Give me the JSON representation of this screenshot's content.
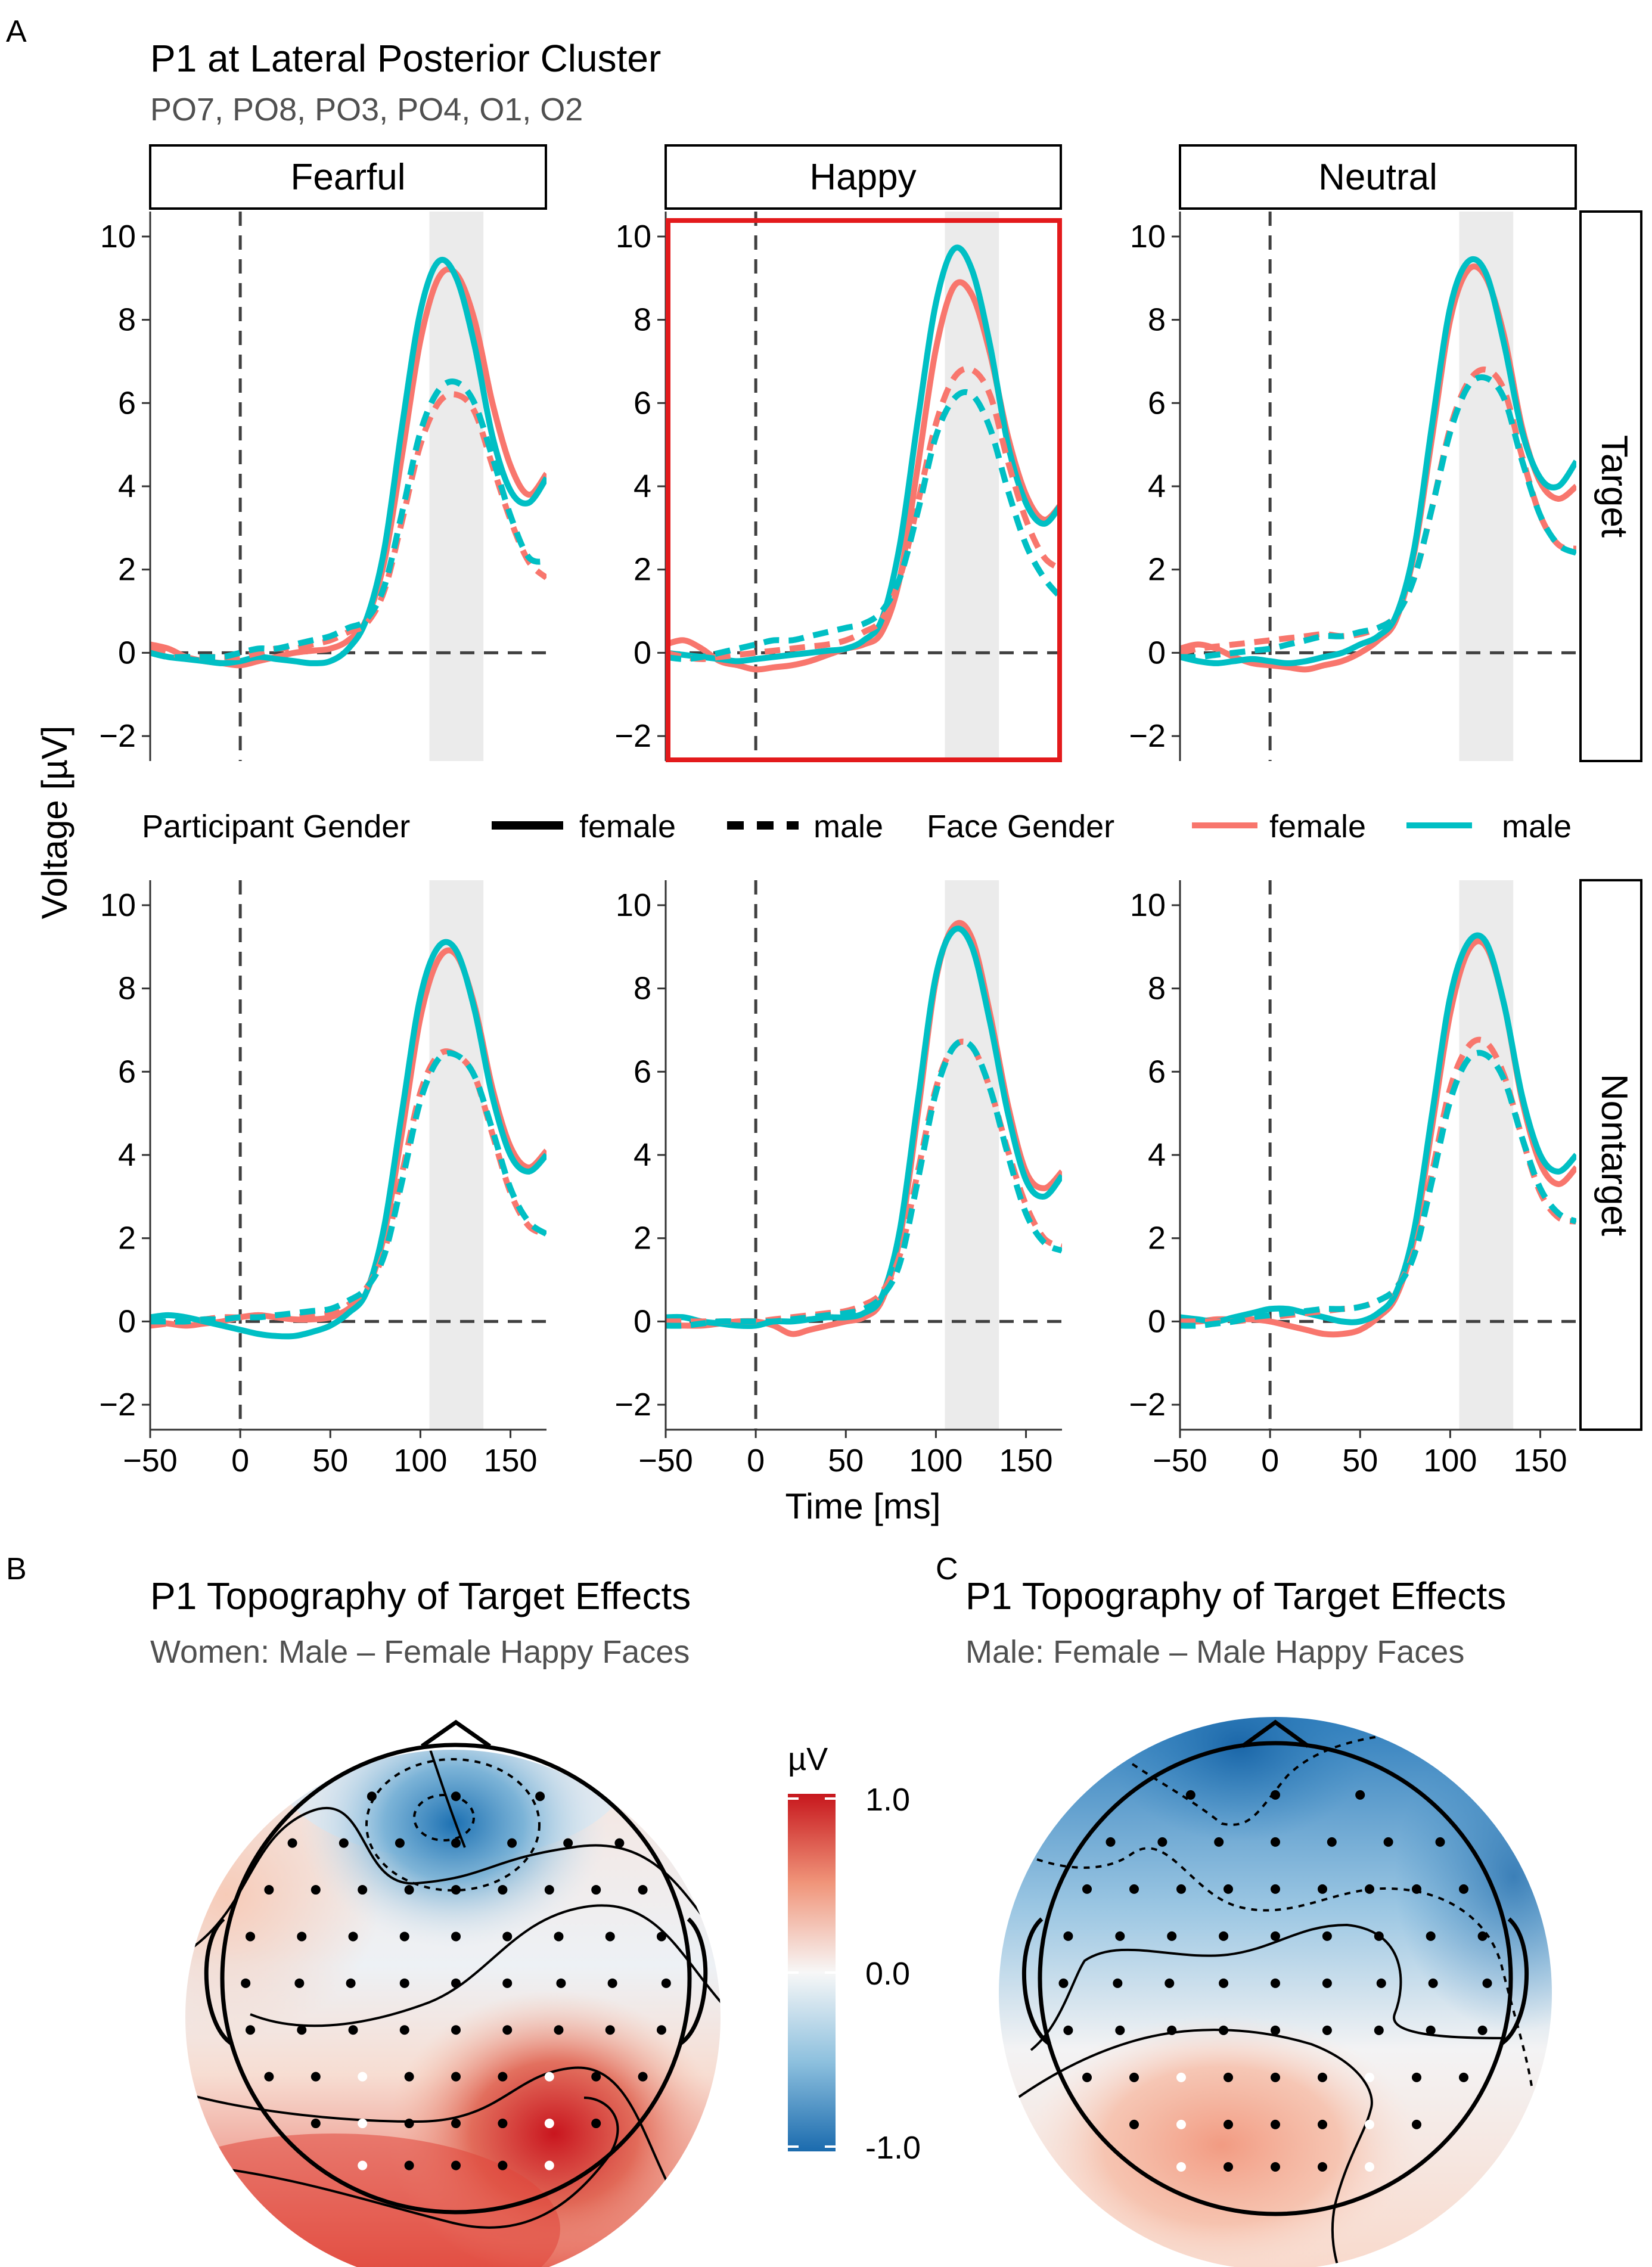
{
  "panel_labels": {
    "a": "A",
    "b": "B",
    "c": "C"
  },
  "panel_a": {
    "title": "P1 at Lateral Posterior Cluster",
    "subtitle": "PO7, PO8, PO3, PO4, O1, O2",
    "facet_columns": [
      "Fearful",
      "Happy",
      "Neutral"
    ],
    "facet_rows": [
      "Target",
      "Nontarget"
    ],
    "xlabel": "Time [ms]",
    "ylabel": "Voltage [µV]",
    "highlighted_panel": "Happy / Target"
  },
  "legend": {
    "participant_title": "Participant Gender",
    "participant_items": [
      "female",
      "male"
    ],
    "face_title": "Face Gender",
    "face_items": [
      "female",
      "male"
    ]
  },
  "colors": {
    "female": "#F8766D",
    "male": "#00BFC4",
    "highlight": "#E31A1C",
    "shade": "#EBEBEB"
  },
  "chart_data": [
    {
      "type": "line",
      "title": "P1 at Lateral Posterior Cluster",
      "xlabel": "Time [ms]",
      "ylabel": "Voltage [µV]",
      "xlim": [
        -50,
        170
      ],
      "ylim": [
        -2.6,
        10.6
      ],
      "x_ticks": [
        -50,
        0,
        50,
        100,
        150
      ],
      "x_tick_labels": [
        "−50",
        "0",
        "50",
        "100",
        "150"
      ],
      "y_ticks": [
        -2,
        0,
        2,
        4,
        6,
        8,
        10
      ],
      "y_tick_labels": [
        "−2",
        "0",
        "2",
        "4",
        "6",
        "8",
        "10"
      ],
      "shaded_window_ms": [
        105,
        135
      ],
      "reference_lines": {
        "x": 0,
        "y": 0
      },
      "x": [
        -50,
        -40,
        -30,
        -20,
        -10,
        0,
        10,
        20,
        30,
        40,
        50,
        60,
        70,
        80,
        90,
        100,
        110,
        120,
        130,
        140,
        150,
        160,
        170
      ],
      "panels": [
        {
          "facet_column": "Fearful",
          "facet_row": "Target",
          "series": [
            {
              "participant_gender": "female",
              "face_gender": "female",
              "values": [
                0.2,
                0.1,
                -0.1,
                -0.2,
                -0.25,
                -0.3,
                -0.2,
                -0.1,
                0,
                0.05,
                0.1,
                0.3,
                0.8,
                2.2,
                4.8,
                7.5,
                9.0,
                9.1,
                8.0,
                6.0,
                4.5,
                3.8,
                4.3
              ]
            },
            {
              "participant_gender": "female",
              "face_gender": "male",
              "values": [
                0,
                -0.1,
                -0.15,
                -0.2,
                -0.25,
                -0.2,
                -0.1,
                -0.15,
                -0.2,
                -0.25,
                -0.2,
                0.1,
                0.8,
                2.5,
                5.5,
                8.2,
                9.4,
                9.0,
                7.4,
                5.2,
                3.9,
                3.6,
                4.2
              ]
            },
            {
              "participant_gender": "male",
              "face_gender": "female",
              "values": [
                0.1,
                0,
                -0.1,
                -0.1,
                -0.1,
                -0.1,
                0,
                0.1,
                0.1,
                0.2,
                0.3,
                0.5,
                0.7,
                1.5,
                3.2,
                5.0,
                6.0,
                6.2,
                5.8,
                4.5,
                3.2,
                2.2,
                1.8
              ]
            },
            {
              "participant_gender": "male",
              "face_gender": "male",
              "values": [
                0,
                -0.1,
                -0.1,
                -0.1,
                -0.1,
                0,
                0.1,
                0.1,
                0.2,
                0.3,
                0.4,
                0.6,
                0.8,
                1.6,
                3.4,
                5.3,
                6.3,
                6.5,
                6.0,
                4.7,
                3.3,
                2.3,
                2.2
              ]
            }
          ]
        },
        {
          "facet_column": "Happy",
          "facet_row": "Target",
          "series": [
            {
              "participant_gender": "female",
              "face_gender": "female",
              "values": [
                0.2,
                0.3,
                0.1,
                -0.2,
                -0.3,
                -0.4,
                -0.35,
                -0.3,
                -0.2,
                -0.05,
                0.1,
                0.2,
                0.5,
                1.8,
                4.5,
                7.3,
                8.8,
                8.6,
                7.2,
                5.2,
                3.8,
                3.2,
                3.6
              ]
            },
            {
              "participant_gender": "female",
              "face_gender": "male",
              "values": [
                0,
                -0.05,
                -0.1,
                -0.15,
                -0.2,
                -0.15,
                -0.1,
                -0.05,
                0,
                0.05,
                0.1,
                0.3,
                0.8,
                2.6,
                5.6,
                8.4,
                9.7,
                9.2,
                7.4,
                5.0,
                3.6,
                3.1,
                3.6
              ]
            },
            {
              "participant_gender": "male",
              "face_gender": "female",
              "values": [
                0,
                -0.1,
                -0.15,
                -0.1,
                -0.05,
                0,
                0.05,
                0.1,
                0.15,
                0.2,
                0.3,
                0.5,
                0.8,
                1.8,
                3.6,
                5.5,
                6.6,
                6.8,
                6.2,
                4.6,
                3.2,
                2.3,
                2.0
              ]
            },
            {
              "participant_gender": "male",
              "face_gender": "male",
              "values": [
                -0.1,
                -0.15,
                -0.1,
                0,
                0.1,
                0.2,
                0.3,
                0.3,
                0.4,
                0.5,
                0.6,
                0.7,
                1.0,
                1.8,
                3.4,
                5.2,
                6.1,
                6.2,
                5.4,
                3.9,
                2.6,
                1.8,
                1.3
              ]
            }
          ]
        },
        {
          "facet_column": "Neutral",
          "facet_row": "Target",
          "series": [
            {
              "participant_gender": "female",
              "face_gender": "female",
              "values": [
                0.1,
                0.2,
                0.1,
                -0.1,
                -0.25,
                -0.3,
                -0.35,
                -0.4,
                -0.3,
                -0.2,
                0,
                0.3,
                0.8,
                2.4,
                5.2,
                8.0,
                9.2,
                9.0,
                7.6,
                5.4,
                4.1,
                3.7,
                4.0
              ]
            },
            {
              "participant_gender": "female",
              "face_gender": "male",
              "values": [
                -0.1,
                -0.2,
                -0.25,
                -0.2,
                -0.15,
                -0.2,
                -0.25,
                -0.2,
                -0.1,
                0,
                0.2,
                0.4,
                0.9,
                2.5,
                5.5,
                8.3,
                9.4,
                9.1,
                7.4,
                5.3,
                4.2,
                4.0,
                4.6
              ]
            },
            {
              "participant_gender": "male",
              "face_gender": "female",
              "values": [
                0,
                0.1,
                0.15,
                0.2,
                0.25,
                0.3,
                0.35,
                0.4,
                0.45,
                0.4,
                0.45,
                0.6,
                0.9,
                1.8,
                3.5,
                5.4,
                6.5,
                6.8,
                6.3,
                4.7,
                3.3,
                2.6,
                2.5
              ]
            },
            {
              "participant_gender": "male",
              "face_gender": "male",
              "values": [
                -0.1,
                -0.1,
                -0.05,
                0,
                0.05,
                0.1,
                0.2,
                0.3,
                0.4,
                0.4,
                0.5,
                0.6,
                0.9,
                1.8,
                3.5,
                5.3,
                6.4,
                6.6,
                6.1,
                4.6,
                3.3,
                2.6,
                2.4
              ]
            }
          ]
        },
        {
          "facet_column": "Fearful",
          "facet_row": "Nontarget",
          "series": [
            {
              "participant_gender": "female",
              "face_gender": "female",
              "values": [
                0,
                -0.05,
                -0.1,
                -0.05,
                0,
                0.1,
                0.15,
                0.1,
                0.05,
                0.05,
                0.1,
                0.3,
                0.7,
                2.1,
                4.6,
                7.3,
                8.7,
                8.8,
                7.6,
                5.6,
                4.2,
                3.7,
                4.1
              ]
            },
            {
              "participant_gender": "female",
              "face_gender": "male",
              "values": [
                0.1,
                0.15,
                0.1,
                0,
                -0.1,
                -0.2,
                -0.3,
                -0.35,
                -0.35,
                -0.25,
                -0.1,
                0.2,
                0.7,
                2.3,
                5.1,
                7.8,
                9.0,
                8.9,
                7.5,
                5.4,
                4.0,
                3.6,
                4.0
              ]
            },
            {
              "participant_gender": "male",
              "face_gender": "female",
              "values": [
                -0.1,
                -0.05,
                0,
                0.05,
                0.1,
                0.1,
                0.15,
                0.1,
                0.1,
                0.15,
                0.2,
                0.4,
                0.8,
                1.7,
                3.6,
                5.5,
                6.4,
                6.4,
                5.9,
                4.5,
                3.1,
                2.3,
                2.1
              ]
            },
            {
              "participant_gender": "male",
              "face_gender": "male",
              "values": [
                0,
                0,
                0,
                0.05,
                0.05,
                0.1,
                0.1,
                0.15,
                0.2,
                0.25,
                0.3,
                0.5,
                0.8,
                1.6,
                3.4,
                5.3,
                6.3,
                6.4,
                5.9,
                4.6,
                3.2,
                2.4,
                2.1
              ]
            }
          ]
        },
        {
          "facet_column": "Happy",
          "facet_row": "Nontarget",
          "series": [
            {
              "participant_gender": "female",
              "face_gender": "female",
              "values": [
                -0.1,
                -0.1,
                -0.1,
                -0.05,
                0,
                0,
                -0.1,
                -0.3,
                -0.2,
                -0.1,
                0,
                0.1,
                0.5,
                2.0,
                5.0,
                8.2,
                9.5,
                9.2,
                7.4,
                5.2,
                3.6,
                3.2,
                3.6
              ]
            },
            {
              "participant_gender": "female",
              "face_gender": "male",
              "values": [
                0.1,
                0.1,
                0,
                -0.05,
                -0.1,
                -0.1,
                0,
                0,
                0.05,
                0.1,
                0.1,
                0.2,
                0.6,
                2.2,
                5.3,
                8.3,
                9.4,
                9.0,
                7.2,
                5.0,
                3.4,
                3.0,
                3.5
              ]
            },
            {
              "participant_gender": "male",
              "face_gender": "female",
              "values": [
                0,
                0,
                0,
                0,
                0,
                0,
                0.05,
                0.1,
                0.15,
                0.2,
                0.25,
                0.4,
                0.7,
                1.6,
                3.6,
                5.6,
                6.6,
                6.6,
                5.6,
                4.1,
                2.8,
                2.0,
                1.8
              ]
            },
            {
              "participant_gender": "male",
              "face_gender": "male",
              "values": [
                -0.1,
                -0.1,
                -0.05,
                0,
                0,
                0,
                0,
                0.05,
                0.1,
                0.15,
                0.2,
                0.3,
                0.6,
                1.4,
                3.4,
                5.5,
                6.6,
                6.6,
                5.6,
                4.0,
                2.6,
                1.9,
                1.7
              ]
            }
          ]
        },
        {
          "facet_column": "Neutral",
          "facet_row": "Nontarget",
          "series": [
            {
              "participant_gender": "female",
              "face_gender": "female",
              "values": [
                0,
                0,
                0.05,
                0.05,
                0.05,
                0,
                -0.1,
                -0.2,
                -0.3,
                -0.3,
                -0.2,
                0.1,
                0.6,
                2.0,
                4.7,
                7.4,
                8.9,
                9.0,
                7.6,
                5.3,
                3.8,
                3.3,
                3.7
              ]
            },
            {
              "participant_gender": "female",
              "face_gender": "male",
              "values": [
                0.1,
                0.05,
                0,
                0.1,
                0.2,
                0.3,
                0.3,
                0.2,
                0.1,
                0,
                0,
                0.2,
                0.7,
                2.2,
                5.0,
                7.8,
                9.1,
                9.1,
                7.6,
                5.4,
                4.0,
                3.6,
                4.0
              ]
            },
            {
              "participant_gender": "male",
              "face_gender": "female",
              "values": [
                0,
                0,
                0,
                0,
                0.05,
                0.1,
                0.15,
                0.2,
                0.25,
                0.3,
                0.35,
                0.5,
                0.8,
                1.7,
                3.6,
                5.6,
                6.6,
                6.7,
                5.9,
                4.4,
                3.1,
                2.5,
                2.4
              ]
            },
            {
              "participant_gender": "male",
              "face_gender": "male",
              "values": [
                -0.1,
                -0.1,
                -0.05,
                0,
                0.1,
                0.15,
                0.2,
                0.25,
                0.3,
                0.3,
                0.35,
                0.5,
                0.8,
                1.6,
                3.4,
                5.3,
                6.3,
                6.4,
                5.8,
                4.4,
                3.2,
                2.6,
                2.4
              ]
            }
          ]
        }
      ]
    },
    {
      "type": "heatmap",
      "title": "P1 Topography of Target Effects",
      "subtitle": "Women: Male – Female Happy Faces",
      "colorbar_label": "µV",
      "colorbar_range": [
        -1.0,
        1.0
      ],
      "colorbar_tick_labels": [
        "1.0",
        "0.0",
        "-1.0"
      ],
      "highlighted_electrodes": [
        "PO7",
        "PO8",
        "PO3",
        "PO4",
        "O1",
        "O2"
      ]
    },
    {
      "type": "heatmap",
      "title": "P1 Topography of Target Effects",
      "subtitle": "Male: Female – Male Happy Faces",
      "colorbar_label": "µV",
      "colorbar_range": [
        -1.0,
        1.0
      ],
      "highlighted_electrodes": [
        "PO7",
        "PO8",
        "PO3",
        "PO4",
        "O1",
        "O2"
      ]
    }
  ]
}
